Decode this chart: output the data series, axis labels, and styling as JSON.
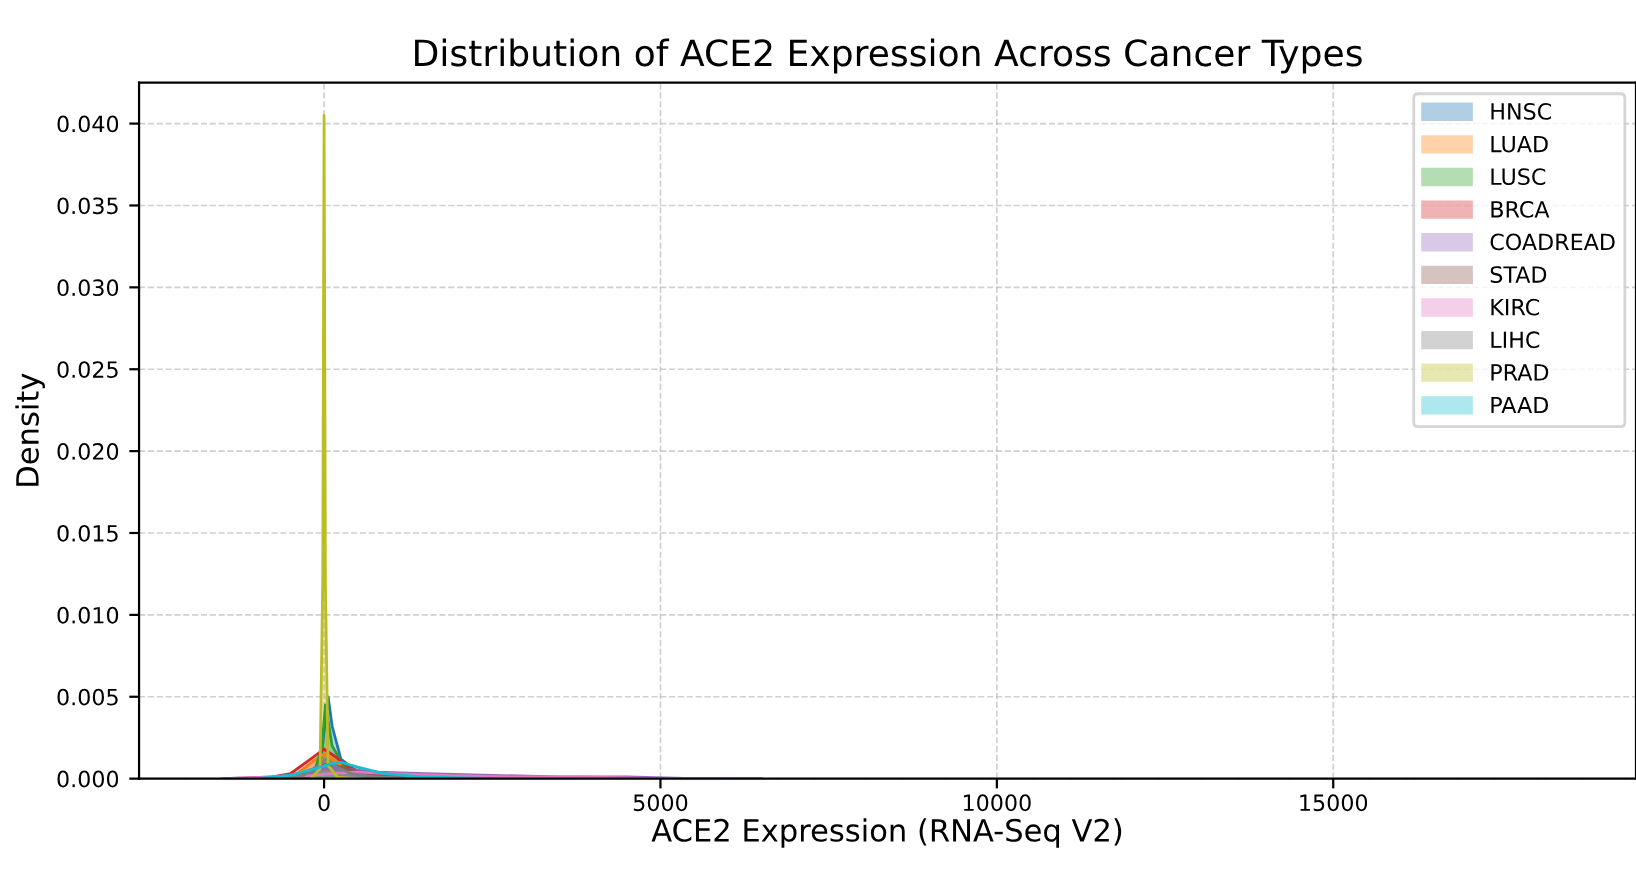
{
  "chart_data": {
    "type": "area",
    "title": "Distribution of ACE2 Expression Across Cancer Types",
    "xlabel": "ACE2 Expression (RNA-Seq V2)",
    "ylabel": "Density",
    "xlim": [
      -2750,
      19500
    ],
    "ylim": [
      0,
      0.0425
    ],
    "xticks": [
      0,
      5000,
      10000,
      15000
    ],
    "yticks": [
      {
        "value": 0,
        "label": "0.000"
      },
      {
        "value": 0.005,
        "label": "0.005"
      },
      {
        "value": 0.01,
        "label": "0.010"
      },
      {
        "value": 0.015,
        "label": "0.015"
      },
      {
        "value": 0.02,
        "label": "0.020"
      },
      {
        "value": 0.025,
        "label": "0.025"
      },
      {
        "value": 0.03,
        "label": "0.030"
      },
      {
        "value": 0.035,
        "label": "0.035"
      },
      {
        "value": 0.04,
        "label": "0.040"
      }
    ],
    "grid": true,
    "legend": "top right",
    "line_style": "solid",
    "series": [
      {
        "name": "HNSC",
        "color": "#1f77b4",
        "x": [
          -400,
          -200,
          -50,
          20,
          60,
          120,
          250,
          500,
          900,
          1500,
          2500
        ],
        "values": [
          0,
          0.0002,
          0.0012,
          0.0035,
          0.005,
          0.0032,
          0.0012,
          0.0004,
          0.0002,
          0.0001,
          0
        ]
      },
      {
        "name": "LUAD",
        "color": "#ff7f0e",
        "x": [
          -800,
          -400,
          -150,
          0,
          100,
          250,
          500,
          900,
          1500,
          2500
        ],
        "values": [
          0,
          0.0003,
          0.0011,
          0.0015,
          0.0013,
          0.0008,
          0.0003,
          0.0001,
          0.0001,
          0
        ]
      },
      {
        "name": "LUSC",
        "color": "#2ca02c",
        "x": [
          -400,
          -150,
          -30,
          20,
          50,
          120,
          300,
          600,
          1200,
          2200
        ],
        "values": [
          0,
          0.0003,
          0.002,
          0.0045,
          0.0038,
          0.002,
          0.0007,
          0.0003,
          0.0001,
          0
        ]
      },
      {
        "name": "BRCA",
        "color": "#d62728",
        "x": [
          -900,
          -500,
          -200,
          0,
          150,
          400,
          800,
          1400,
          2400
        ],
        "values": [
          0,
          0.0003,
          0.0012,
          0.0018,
          0.0014,
          0.0006,
          0.0002,
          0.0001,
          0
        ]
      },
      {
        "name": "COADREAD",
        "color": "#9467bd",
        "x": [
          -1500,
          -800,
          -300,
          0,
          300,
          800,
          1500,
          2500,
          3500,
          4500,
          5500,
          6500
        ],
        "values": [
          0,
          0.0001,
          0.0003,
          0.0006,
          0.0006,
          0.0004,
          0.0003,
          0.0002,
          0.0001,
          0.0001,
          0,
          0
        ]
      },
      {
        "name": "STAD",
        "color": "#8c564b",
        "x": [
          -900,
          -400,
          -100,
          50,
          250,
          600,
          1100,
          1800,
          3000
        ],
        "values": [
          0,
          0.0002,
          0.0007,
          0.0009,
          0.0007,
          0.0003,
          0.0001,
          0,
          0
        ]
      },
      {
        "name": "KIRC",
        "color": "#e377c2",
        "x": [
          -1500,
          -700,
          -200,
          100,
          500,
          1000,
          1800,
          2800,
          3800,
          5000,
          6000
        ],
        "values": [
          0,
          0.0001,
          0.0002,
          0.0003,
          0.0004,
          0.0003,
          0.0002,
          0.0001,
          0.0001,
          0,
          0
        ]
      },
      {
        "name": "LIHC",
        "color": "#7f7f7f",
        "x": [
          -700,
          -300,
          -80,
          30,
          150,
          400,
          800,
          1500
        ],
        "values": [
          0,
          0.0002,
          0.0008,
          0.0012,
          0.0008,
          0.0003,
          0.0001,
          0
        ]
      },
      {
        "name": "PRAD",
        "color": "#bcbd22",
        "x": [
          -200,
          -60,
          -20,
          0,
          20,
          60,
          200,
          500
        ],
        "values": [
          0,
          0.0006,
          0.012,
          0.0405,
          0.012,
          0.0008,
          0.0001,
          0
        ]
      },
      {
        "name": "PAAD",
        "color": "#17becf",
        "x": [
          -1000,
          -500,
          -150,
          100,
          250,
          500,
          900,
          1500,
          2500
        ],
        "values": [
          0,
          0.0002,
          0.0006,
          0.0009,
          0.001,
          0.0007,
          0.0003,
          0.0001,
          0
        ]
      }
    ]
  }
}
